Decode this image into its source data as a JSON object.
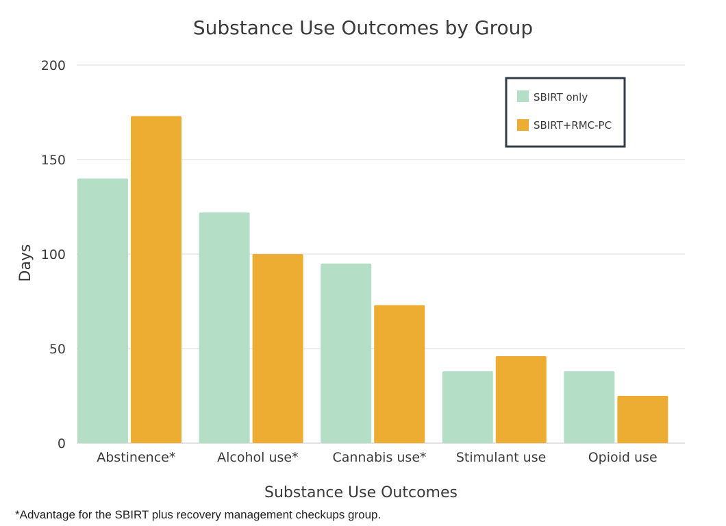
{
  "chart_data": {
    "type": "bar",
    "title": "Substance Use Outcomes by Group",
    "xlabel": "Substance Use Outcomes",
    "ylabel": "Days",
    "categories": [
      "Abstinence*",
      "Alcohol use*",
      "Cannabis use*",
      "Stimulant use",
      "Opioid use"
    ],
    "series": [
      {
        "name": "SBIRT only",
        "color": "#b4dec6",
        "values": [
          140,
          122,
          95,
          38,
          38
        ]
      },
      {
        "name": "SBIRT+RMC-PC",
        "color": "#ecad32",
        "values": [
          173,
          100,
          73,
          46,
          25
        ]
      }
    ],
    "ylim": [
      0,
      200
    ],
    "yticks": [
      0,
      50,
      100,
      150,
      200
    ],
    "grid": true,
    "legend_position": "top-right"
  },
  "footnote": "*Advantage for the SBIRT plus recovery management checkups group."
}
